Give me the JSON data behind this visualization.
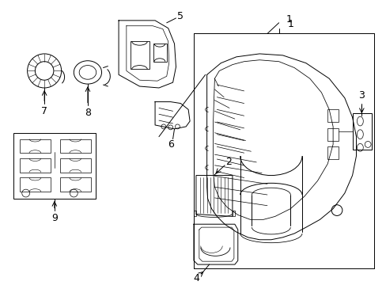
{
  "background_color": "#ffffff",
  "line_color": "#000000",
  "figsize": [
    4.89,
    3.6
  ],
  "dpi": 100,
  "lw": 0.7
}
